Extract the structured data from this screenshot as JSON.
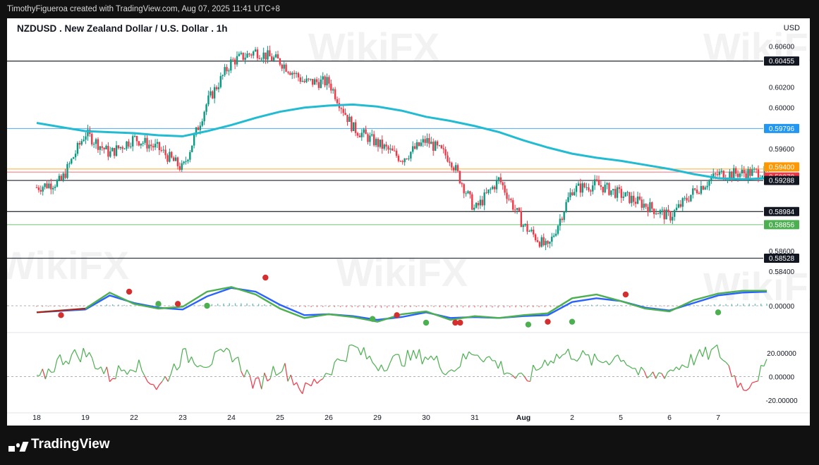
{
  "header": {
    "attribution": "TimothyFigueroa created with TradingView.com, Aug 07, 2025 11:41 UTC+8"
  },
  "chart": {
    "title": "NZDUSD . New Zealand Dollar / U.S. Dollar . 1h",
    "currency": "USD"
  },
  "footer": {
    "brand": "TradingView"
  },
  "watermark": "WikiFX",
  "chart_data": [
    {
      "type": "line",
      "subtype": "candlestick",
      "title": "NZDUSD . New Zealand Dollar / U.S. Dollar . 1h",
      "x_tick_labels": [
        "18",
        "19",
        "22",
        "23",
        "24",
        "25",
        "26",
        "29",
        "30",
        "31",
        "Aug",
        "2",
        "5",
        "6",
        "7"
      ],
      "y_axis_labels": [
        "0.60600",
        "0.60200",
        "0.60000",
        "0.59600",
        "0.58600",
        "0.58400"
      ],
      "ylim": [
        0.5838,
        0.6068
      ],
      "price_lines": [
        {
          "label": "0.60455",
          "value": 0.60455,
          "color": "#131722"
        },
        {
          "label": "0.59796",
          "value": 0.59796,
          "color": "#2196f3"
        },
        {
          "label": "0.59400",
          "value": 0.594,
          "color": "#ff9800"
        },
        {
          "label": "0.59370",
          "value": 0.5937,
          "color": "#f23645"
        },
        {
          "label": "0.59288",
          "value": 0.59288,
          "color": "#131722"
        },
        {
          "label": "0.58984",
          "value": 0.58984,
          "color": "#131722"
        },
        {
          "label": "0.58856",
          "value": 0.58856,
          "color": "#4caf50"
        },
        {
          "label": "0.58528",
          "value": 0.58528,
          "color": "#131722"
        }
      ],
      "series": [
        {
          "name": "",
          "color": "#22bcd2",
          "x": [
            0,
            0.5,
            1,
            1.5,
            2,
            2.5,
            3,
            3.5,
            4,
            4.5,
            5,
            5.5,
            6,
            6.5,
            7,
            7.5,
            8,
            8.5,
            9,
            9.5,
            10,
            10.5,
            11,
            11.5,
            12,
            12.5,
            13,
            13.5,
            14,
            14.5,
            15
          ],
          "values": [
            0.5985,
            0.5981,
            0.5977,
            0.5976,
            0.5975,
            0.5973,
            0.5972,
            0.5977,
            0.5983,
            0.599,
            0.5996,
            0.6,
            0.6002,
            0.6003,
            0.6001,
            0.5997,
            0.5991,
            0.5987,
            0.5982,
            0.5976,
            0.5968,
            0.5961,
            0.5955,
            0.5951,
            0.5948,
            0.5944,
            0.594,
            0.5935,
            0.5931,
            0.593,
            0.5931
          ]
        },
        {
          "name": "",
          "color": "#26a69a",
          "x": [
            0,
            0.5,
            1,
            1.5,
            2,
            2.5,
            3,
            3.5,
            4,
            4.5,
            5,
            5.5,
            6,
            6.5,
            7,
            7.5,
            8,
            8.5,
            9,
            9.5,
            10,
            10.5,
            11,
            11.5,
            12,
            12.5,
            13,
            13.5,
            14,
            14.5,
            15
          ],
          "values": [
            0.5922,
            0.5928,
            0.5975,
            0.5955,
            0.597,
            0.596,
            0.594,
            0.6005,
            0.6045,
            0.6055,
            0.6045,
            0.6025,
            0.6025,
            0.598,
            0.5965,
            0.595,
            0.5968,
            0.595,
            0.59,
            0.593,
            0.5885,
            0.5862,
            0.592,
            0.5925,
            0.5915,
            0.5905,
            0.5893,
            0.5918,
            0.5935,
            0.5936,
            0.5937
          ]
        }
      ]
    },
    {
      "type": "line",
      "y_axis_labels": [
        "0.00000"
      ],
      "series": [
        {
          "name": "",
          "color": "#2962ff",
          "x": [
            0,
            1,
            1.5,
            2,
            2.5,
            3,
            3.5,
            4,
            4.5,
            5,
            5.5,
            6,
            6.5,
            7,
            7.5,
            8,
            8.5,
            9,
            9.5,
            10,
            10.5,
            11,
            11.5,
            12,
            12.5,
            13,
            13.5,
            14,
            14.5,
            15
          ],
          "values": [
            -0.0007,
            -0.0004,
            0.0011,
            0.0003,
            -0.0002,
            -0.0004,
            0.001,
            0.0019,
            0.0015,
            0.0001,
            -0.001,
            -0.0009,
            -0.0011,
            -0.0015,
            -0.0012,
            -0.0007,
            -0.0013,
            -0.0012,
            -0.0013,
            -0.0011,
            -0.001,
            0.0004,
            0.0008,
            0.0005,
            -0.0002,
            -0.0005,
            0.0003,
            0.0011,
            0.0014,
            0.0015
          ]
        },
        {
          "name": "",
          "color": "#4caf50",
          "x": [
            0,
            1,
            1.5,
            2,
            2.5,
            3,
            3.5,
            4,
            4.5,
            5,
            5.5,
            6,
            6.5,
            7,
            7.5,
            8,
            8.5,
            9,
            9.5,
            10,
            10.5,
            11,
            11.5,
            12,
            12.5,
            13,
            13.5,
            14,
            14.5,
            15
          ],
          "values": [
            -0.0007,
            -0.0003,
            0.0014,
            0.0002,
            -0.0003,
            -0.0001,
            0.0015,
            0.002,
            0.0012,
            -0.0003,
            -0.0013,
            -0.0009,
            -0.0012,
            -0.0017,
            -0.0009,
            -0.0006,
            -0.0015,
            -0.0011,
            -0.0013,
            -0.001,
            -0.0008,
            0.0008,
            0.0012,
            0.0005,
            -0.0003,
            -0.0006,
            0.0006,
            0.0013,
            0.0016,
            0.0016
          ]
        }
      ],
      "cross_points": [
        {
          "x": 0.5,
          "value": -0.001,
          "color": "#d32f2f"
        },
        {
          "x": 1.9,
          "value": 0.0015,
          "color": "#d32f2f"
        },
        {
          "x": 2.5,
          "value": 0.0002,
          "color": "#4caf50"
        },
        {
          "x": 2.9,
          "value": 0.0002,
          "color": "#d32f2f"
        },
        {
          "x": 3.5,
          "value": 0.0,
          "color": "#4caf50"
        },
        {
          "x": 4.7,
          "value": 0.003,
          "color": "#d32f2f"
        },
        {
          "x": 6.9,
          "value": -0.0014,
          "color": "#4caf50"
        },
        {
          "x": 7.4,
          "value": -0.001,
          "color": "#d32f2f"
        },
        {
          "x": 8.0,
          "value": -0.0018,
          "color": "#4caf50"
        },
        {
          "x": 8.6,
          "value": -0.0018,
          "color": "#d32f2f"
        },
        {
          "x": 8.7,
          "value": -0.0018,
          "color": "#d32f2f"
        },
        {
          "x": 10.1,
          "value": -0.002,
          "color": "#4caf50"
        },
        {
          "x": 10.5,
          "value": -0.0017,
          "color": "#d32f2f"
        },
        {
          "x": 11.0,
          "value": -0.0017,
          "color": "#4caf50"
        },
        {
          "x": 12.1,
          "value": 0.0012,
          "color": "#d32f2f"
        },
        {
          "x": 14.0,
          "value": -0.0007,
          "color": "#4caf50"
        }
      ]
    },
    {
      "type": "line",
      "y_axis_labels": [
        "20.00000",
        "0.00000",
        "-20.00000"
      ],
      "ylim": [
        -26,
        29
      ],
      "series": [
        {
          "name": "",
          "color": "#4caf50",
          "x": [
            0,
            0.5,
            1,
            1.5,
            2,
            2.5,
            3,
            3.5,
            4,
            4.5,
            5,
            5.5,
            6,
            6.5,
            7,
            7.5,
            8,
            8.5,
            9,
            9.5,
            10,
            10.5,
            11,
            11.5,
            12,
            12.5,
            13,
            13.5,
            14,
            14.5,
            15
          ],
          "values": [
            -5,
            15,
            20,
            0,
            12,
            -10,
            18,
            12,
            20,
            -8,
            10,
            -12,
            5,
            25,
            10,
            15,
            18,
            5,
            22,
            10,
            -5,
            15,
            20,
            12,
            18,
            -2,
            5,
            15,
            22,
            -10,
            8
          ]
        }
      ]
    }
  ]
}
